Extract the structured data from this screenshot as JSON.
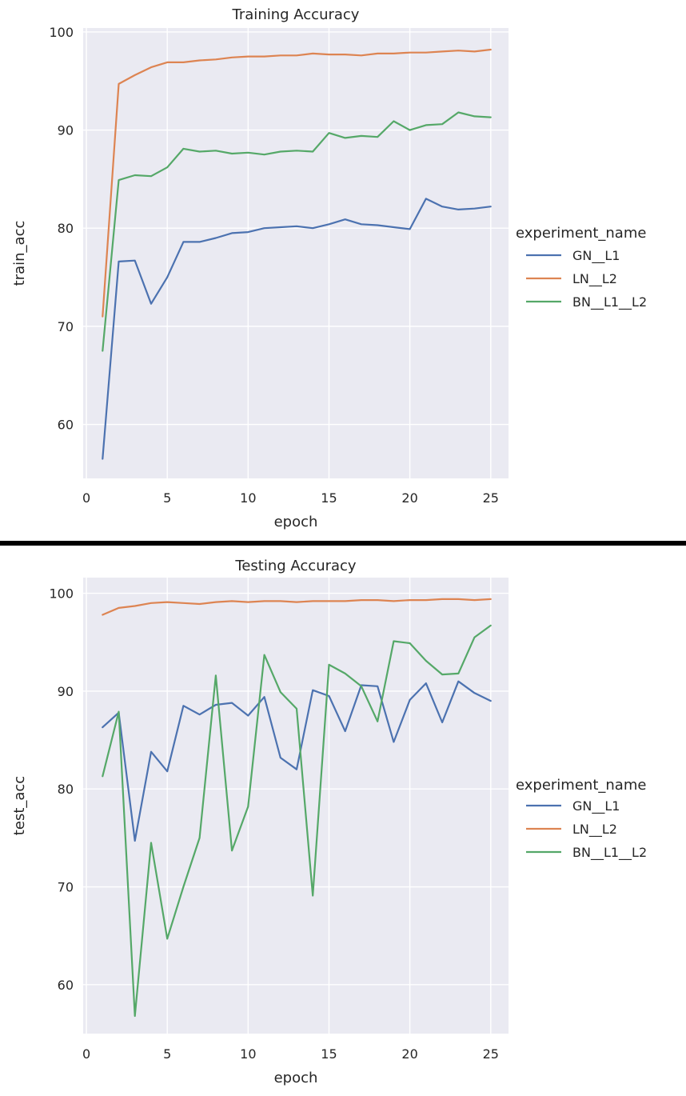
{
  "chart_data": [
    {
      "type": "line",
      "title": "Training Accuracy",
      "xlabel": "epoch",
      "ylabel": "train_acc",
      "xlim": [
        -0.2,
        26.1
      ],
      "ylim": [
        54.5,
        100.4
      ],
      "xticks": [
        0,
        5,
        10,
        15,
        20,
        25
      ],
      "yticks": [
        60,
        70,
        80,
        90,
        100
      ],
      "grid": true,
      "legend_position": "right",
      "legend_title": "experiment_name",
      "x": [
        1,
        2,
        3,
        4,
        5,
        6,
        7,
        8,
        9,
        10,
        11,
        12,
        13,
        14,
        15,
        16,
        17,
        18,
        19,
        20,
        21,
        22,
        23,
        24,
        25
      ],
      "series": [
        {
          "name": "GN__L1",
          "color": "#4c72b0",
          "values": [
            56.5,
            76.6,
            76.7,
            72.3,
            75.0,
            78.6,
            78.6,
            79.0,
            79.5,
            79.6,
            80.0,
            80.1,
            80.2,
            80.0,
            80.4,
            80.9,
            80.4,
            80.3,
            80.1,
            79.9,
            83.0,
            82.2,
            81.9,
            82.0,
            82.2
          ]
        },
        {
          "name": "LN__L2",
          "color": "#dd8452",
          "values": [
            71.0,
            94.7,
            95.6,
            96.4,
            96.9,
            96.9,
            97.1,
            97.2,
            97.4,
            97.5,
            97.5,
            97.6,
            97.6,
            97.8,
            97.7,
            97.7,
            97.6,
            97.8,
            97.8,
            97.9,
            97.9,
            98.0,
            98.1,
            98.0,
            98.2
          ]
        },
        {
          "name": "BN__L1__L2",
          "color": "#55a868",
          "values": [
            67.5,
            84.9,
            85.4,
            85.3,
            86.2,
            88.1,
            87.8,
            87.9,
            87.6,
            87.7,
            87.5,
            87.8,
            87.9,
            87.8,
            89.7,
            89.2,
            89.4,
            89.3,
            90.9,
            90.0,
            90.5,
            90.6,
            91.8,
            91.4,
            91.3
          ]
        }
      ]
    },
    {
      "type": "line",
      "title": "Testing Accuracy",
      "xlabel": "epoch",
      "ylabel": "test_acc",
      "xlim": [
        -0.2,
        26.1
      ],
      "ylim": [
        55.0,
        101.6
      ],
      "xticks": [
        0,
        5,
        10,
        15,
        20,
        25
      ],
      "yticks": [
        60,
        70,
        80,
        90,
        100
      ],
      "grid": true,
      "legend_position": "right",
      "legend_title": "experiment_name",
      "x": [
        1,
        2,
        3,
        4,
        5,
        6,
        7,
        8,
        9,
        10,
        11,
        12,
        13,
        14,
        15,
        16,
        17,
        18,
        19,
        20,
        21,
        22,
        23,
        24,
        25
      ],
      "series": [
        {
          "name": "GN__L1",
          "color": "#4c72b0",
          "values": [
            86.3,
            87.8,
            74.7,
            83.8,
            81.8,
            88.5,
            87.6,
            88.6,
            88.8,
            87.5,
            89.4,
            83.2,
            82.0,
            90.1,
            89.5,
            85.9,
            90.6,
            90.5,
            84.8,
            89.1,
            90.8,
            86.8,
            91.0,
            89.8,
            89.0
          ]
        },
        {
          "name": "LN__L2",
          "color": "#dd8452",
          "values": [
            97.8,
            98.5,
            98.7,
            99.0,
            99.1,
            99.0,
            98.9,
            99.1,
            99.2,
            99.1,
            99.2,
            99.2,
            99.1,
            99.2,
            99.2,
            99.2,
            99.3,
            99.3,
            99.2,
            99.3,
            99.3,
            99.4,
            99.4,
            99.3,
            99.4
          ]
        },
        {
          "name": "BN__L1__L2",
          "color": "#55a868",
          "values": [
            81.3,
            87.9,
            56.8,
            74.5,
            64.7,
            70.0,
            75.0,
            91.6,
            73.7,
            78.2,
            93.7,
            89.9,
            88.2,
            69.1,
            92.7,
            91.8,
            90.5,
            86.9,
            95.1,
            94.9,
            93.1,
            91.7,
            91.8,
            95.5,
            96.7
          ]
        }
      ]
    }
  ]
}
